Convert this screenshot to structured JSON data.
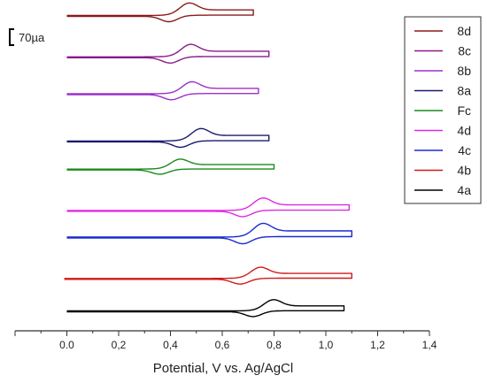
{
  "chart_data": {
    "type": "line",
    "xlabel": "Potential, V vs. Ag/AgCl",
    "xlim": [
      -0.2,
      1.4
    ],
    "xticks": [
      "0.0",
      "0,2",
      "0,4",
      "0,6",
      "0,8",
      "1,0",
      "1,2",
      "1,4"
    ],
    "xtick_values": [
      0.0,
      0.2,
      0.4,
      0.6,
      0.8,
      1.0,
      1.2,
      1.4
    ],
    "scale_bar": {
      "label": "70µa",
      "value": 70
    },
    "legend_position": "top-right",
    "series": [
      {
        "name": "8d",
        "color": "#8b1a1a",
        "E0": 0.43,
        "start": 0.0,
        "end": 0.72,
        "offset": 1.0,
        "amplitude": 0.05
      },
      {
        "name": "8c",
        "color": "#8a1a8a",
        "E0": 0.435,
        "start": 0.0,
        "end": 0.78,
        "offset": 0.86,
        "amplitude": 0.05
      },
      {
        "name": "8b",
        "color": "#9b30c8",
        "E0": 0.44,
        "start": 0.0,
        "end": 0.74,
        "offset": 0.735,
        "amplitude": 0.048
      },
      {
        "name": "8a",
        "color": "#1a1a6e",
        "E0": 0.475,
        "start": 0.0,
        "end": 0.78,
        "offset": 0.575,
        "amplitude": 0.05
      },
      {
        "name": "Fc",
        "color": "#1a8a1a",
        "E0": 0.395,
        "start": 0.0,
        "end": 0.8,
        "offset": 0.48,
        "amplitude": 0.04
      },
      {
        "name": "4d",
        "color": "#e02ae0",
        "E0": 0.715,
        "start": 0.0,
        "end": 1.09,
        "offset": 0.34,
        "amplitude": 0.05
      },
      {
        "name": "4c",
        "color": "#1a2ad0",
        "E0": 0.715,
        "start": 0.0,
        "end": 1.1,
        "offset": 0.25,
        "amplitude": 0.055
      },
      {
        "name": "4b",
        "color": "#d01a1a",
        "E0": 0.705,
        "start": -0.01,
        "end": 1.1,
        "offset": 0.11,
        "amplitude": 0.045
      },
      {
        "name": "4a",
        "color": "#000000",
        "E0": 0.755,
        "start": 0.0,
        "end": 1.07,
        "offset": 0.0,
        "amplitude": 0.045
      }
    ]
  }
}
